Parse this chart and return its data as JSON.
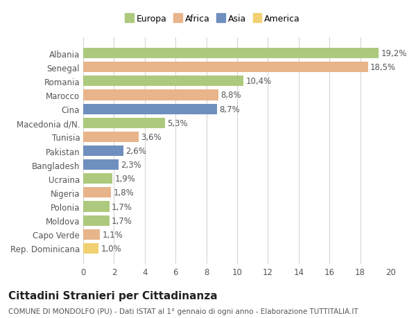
{
  "title": "Cittadini Stranieri per Cittadinanza",
  "subtitle": "COMUNE DI MONDOLFO (PU) - Dati ISTAT al 1° gennaio di ogni anno - Elaborazione TUTTITALIA.IT",
  "categories": [
    "Albania",
    "Senegal",
    "Romania",
    "Marocco",
    "Cina",
    "Macedonia d/N.",
    "Tunisia",
    "Pakistan",
    "Bangladesh",
    "Ucraina",
    "Nigeria",
    "Polonia",
    "Moldova",
    "Capo Verde",
    "Rep. Dominicana"
  ],
  "values": [
    19.2,
    18.5,
    10.4,
    8.8,
    8.7,
    5.3,
    3.6,
    2.6,
    2.3,
    1.9,
    1.8,
    1.7,
    1.7,
    1.1,
    1.0
  ],
  "labels": [
    "19,2%",
    "18,5%",
    "10,4%",
    "8,8%",
    "8,7%",
    "5,3%",
    "3,6%",
    "2,6%",
    "2,3%",
    "1,9%",
    "1,8%",
    "1,7%",
    "1,7%",
    "1,1%",
    "1,0%"
  ],
  "continents": [
    "Europa",
    "Africa",
    "Europa",
    "Africa",
    "Asia",
    "Europa",
    "Africa",
    "Asia",
    "Asia",
    "Europa",
    "Africa",
    "Europa",
    "Europa",
    "Africa",
    "America"
  ],
  "colors": {
    "Europa": "#adc97d",
    "Africa": "#e8b48a",
    "Asia": "#6f8fbe",
    "America": "#f0d070"
  },
  "xlim": [
    0,
    20
  ],
  "xticks": [
    0,
    2,
    4,
    6,
    8,
    10,
    12,
    14,
    16,
    18,
    20
  ],
  "background_color": "#ffffff",
  "grid_color": "#d0d0d0",
  "bar_height": 0.75,
  "label_fontsize": 8.5,
  "tick_fontsize": 8.5,
  "title_fontsize": 11,
  "subtitle_fontsize": 7.5
}
